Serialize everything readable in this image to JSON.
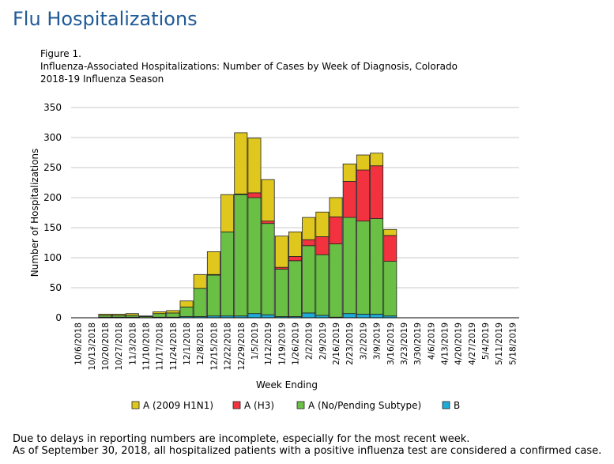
{
  "page": {
    "title": "Flu Hospitalizations"
  },
  "figure": {
    "label": "Figure 1.",
    "line1": "Influenza-Associated Hospitalizations: Number of  Cases by Week of Diagnosis, Colorado",
    "line2": "2018-19 Influenza Season"
  },
  "footnote": {
    "line1": "Due to delays in reporting numbers are incomplete, especially for the most recent week.",
    "line2": "As of September 30, 2018, all hospitalized patients with a positive influenza test are considered a confirmed case."
  },
  "chart_data": {
    "type": "bar",
    "stacked": true,
    "title": "Influenza-Associated Hospitalizations: Number of  Cases by Week of Diagnosis, Colorado 2018-19 Influenza Season",
    "xlabel": "Week Ending",
    "ylabel": "Number of Hospitalizations",
    "ylim": [
      0,
      350
    ],
    "yticks": [
      0,
      50,
      100,
      150,
      200,
      250,
      300,
      350
    ],
    "grid": true,
    "legend_position": "bottom",
    "categories": [
      "10/6/2018",
      "10/13/2018",
      "10/20/2018",
      "10/27/2018",
      "11/3/2018",
      "11/10/2018",
      "11/17/2018",
      "11/24/2018",
      "12/1/2018",
      "12/8/2018",
      "12/15/2018",
      "12/22/2018",
      "12/29/2018",
      "1/5/2019",
      "1/12/2019",
      "1/19/2019",
      "1/26/2019",
      "2/2/2019",
      "2/9/2019",
      "2/16/2019",
      "2/23/2019",
      "3/2/2019",
      "3/9/2019",
      "3/16/2019",
      "3/23/2019",
      "3/30/2019",
      "4/6/2019",
      "4/13/2019",
      "4/20/2019",
      "4/27/2019",
      "5/4/2019",
      "5/11/2019",
      "5/18/2019"
    ],
    "series": [
      {
        "name": "B",
        "color": "#1eaad6",
        "values": [
          0,
          0,
          1,
          1,
          1,
          0,
          1,
          1,
          2,
          2,
          3,
          3,
          3,
          7,
          5,
          2,
          2,
          8,
          4,
          1,
          7,
          6,
          6,
          3,
          0,
          0,
          0,
          0,
          0,
          0,
          0,
          0,
          0
        ]
      },
      {
        "name": "A (No/Pending Subtype)",
        "color": "#6abf45",
        "values": [
          0,
          0,
          3,
          3,
          3,
          2,
          6,
          7,
          16,
          47,
          68,
          140,
          202,
          193,
          152,
          79,
          93,
          112,
          101,
          122,
          160,
          155,
          159,
          91,
          0,
          0,
          0,
          0,
          0,
          0,
          0,
          0,
          0
        ]
      },
      {
        "name": "A (H3)",
        "color": "#f2333f",
        "values": [
          0,
          0,
          0,
          0,
          0,
          0,
          0,
          0,
          0,
          0,
          1,
          0,
          1,
          8,
          4,
          3,
          7,
          10,
          30,
          45,
          60,
          85,
          88,
          43,
          0,
          0,
          0,
          0,
          0,
          0,
          0,
          0,
          0
        ]
      },
      {
        "name": "A (2009 H1N1)",
        "color": "#e0c71d",
        "values": [
          0,
          0,
          2,
          2,
          3,
          1,
          3,
          4,
          10,
          23,
          38,
          62,
          102,
          91,
          69,
          52,
          41,
          37,
          41,
          32,
          29,
          25,
          21,
          10,
          0,
          0,
          0,
          0,
          0,
          0,
          0,
          0,
          0
        ]
      }
    ],
    "legend_order": [
      "A (2009 H1N1)",
      "A (H3)",
      "A (No/Pending Subtype)",
      "B"
    ]
  }
}
